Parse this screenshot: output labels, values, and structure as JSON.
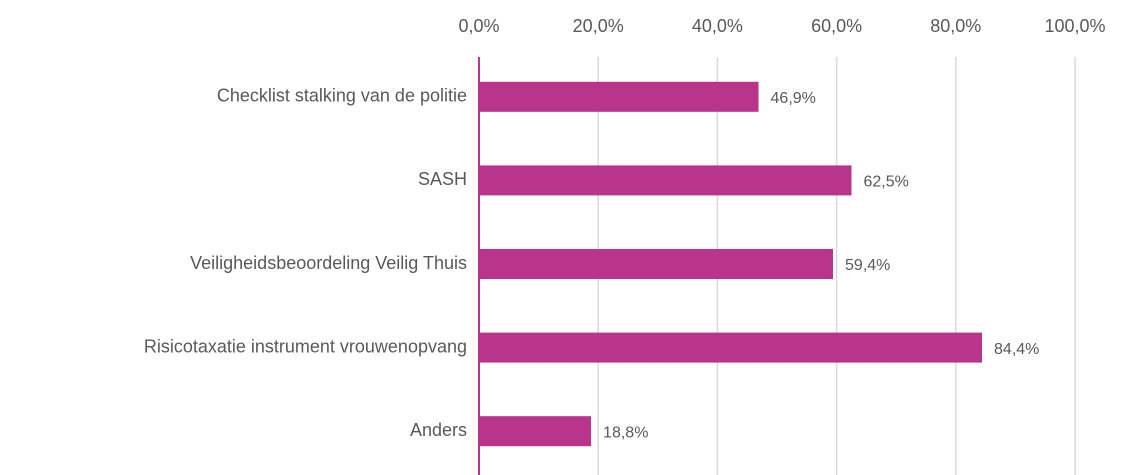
{
  "chart_data": {
    "type": "bar",
    "orientation": "horizontal",
    "categories": [
      "Checklist stalking van de politie",
      "SASH",
      "Veiligheidsbeoordeling Veilig Thuis",
      "Risicotaxatie instrument vrouwenopvang",
      "Anders"
    ],
    "values": [
      46.9,
      62.5,
      59.4,
      84.4,
      18.8
    ],
    "value_labels": [
      "46,9%",
      "62,5%",
      "59,4%",
      "84,4%",
      "18,8%"
    ],
    "color": "#b9348b",
    "xlim": [
      0,
      100
    ],
    "xticks": [
      {
        "value": 0,
        "label": "0,0%"
      },
      {
        "value": 20,
        "label": "20,0%"
      },
      {
        "value": 40,
        "label": "40,0%"
      },
      {
        "value": 60,
        "label": "60,0%"
      },
      {
        "value": 80,
        "label": "80,0%"
      },
      {
        "value": 100,
        "label": "100,0%"
      }
    ],
    "grid": true
  }
}
